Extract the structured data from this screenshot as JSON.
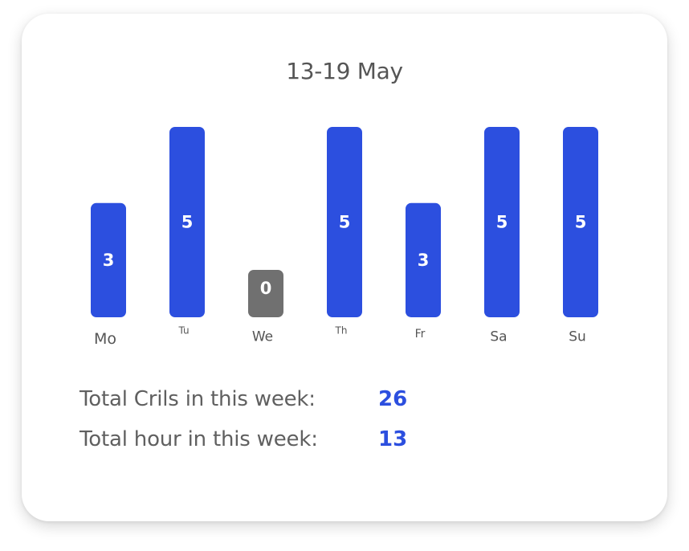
{
  "title": "13-19 May",
  "chart_data": {
    "type": "bar",
    "title": "13-19 May",
    "categories": [
      "Mo",
      "Tu",
      "We",
      "Th",
      "Fr",
      "Sa",
      "Su"
    ],
    "values": [
      3,
      5,
      0,
      5,
      3,
      5,
      5
    ],
    "ylim": [
      0,
      5
    ],
    "grid": false,
    "data_labels": true,
    "colors": {
      "bar": "#2c4fdf",
      "zero_bar": "#707070"
    }
  },
  "summary": {
    "crils_label": "Total Crils in this week:",
    "crils_value": "26",
    "hours_label": "Total hour in this week:",
    "hours_value": "13"
  },
  "colors": {
    "accent": "#2c4fdf",
    "text": "#555555"
  }
}
